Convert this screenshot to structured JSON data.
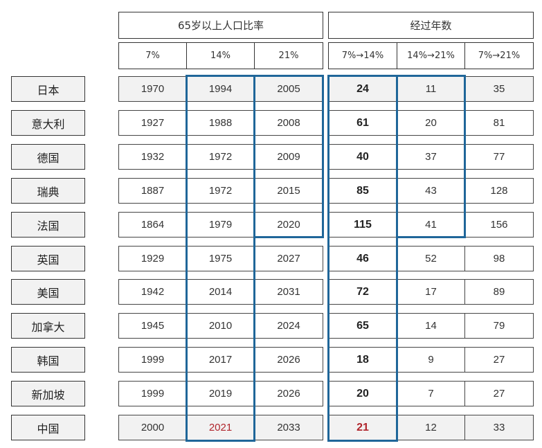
{
  "headers": {
    "group_ratio": "65岁以上人口比率",
    "group_years": "经过年数",
    "sub": [
      "7%",
      "14%",
      "21%",
      "7%→14%",
      "14%→21%",
      "7%→21%"
    ]
  },
  "rows": [
    {
      "country": "日本",
      "values": [
        "1970",
        "1994",
        "2005",
        "24",
        "11",
        "35"
      ]
    },
    {
      "country": "意大利",
      "values": [
        "1927",
        "1988",
        "2008",
        "61",
        "20",
        "81"
      ]
    },
    {
      "country": "德国",
      "values": [
        "1932",
        "1972",
        "2009",
        "40",
        "37",
        "77"
      ]
    },
    {
      "country": "瑞典",
      "values": [
        "1887",
        "1972",
        "2015",
        "85",
        "43",
        "128"
      ]
    },
    {
      "country": "法国",
      "values": [
        "1864",
        "1979",
        "2020",
        "115",
        "41",
        "156"
      ]
    },
    {
      "country": "英国",
      "values": [
        "1929",
        "1975",
        "2027",
        "46",
        "52",
        "98"
      ]
    },
    {
      "country": "美国",
      "values": [
        "1942",
        "2014",
        "2031",
        "72",
        "17",
        "89"
      ]
    },
    {
      "country": "加拿大",
      "values": [
        "1945",
        "2010",
        "2024",
        "65",
        "14",
        "79"
      ]
    },
    {
      "country": "韩国",
      "values": [
        "1999",
        "2017",
        "2026",
        "18",
        "9",
        "27"
      ]
    },
    {
      "country": "新加坡",
      "values": [
        "1999",
        "2019",
        "2026",
        "20",
        "7",
        "27"
      ]
    },
    {
      "country": "中国",
      "values": [
        "2000",
        "2021",
        "2033",
        "21",
        "12",
        "33"
      ]
    }
  ],
  "colors": {
    "highlight_border": "#1f6699",
    "highlight_text": "#b0252c",
    "shaded_row": "#f2f2f2"
  }
}
